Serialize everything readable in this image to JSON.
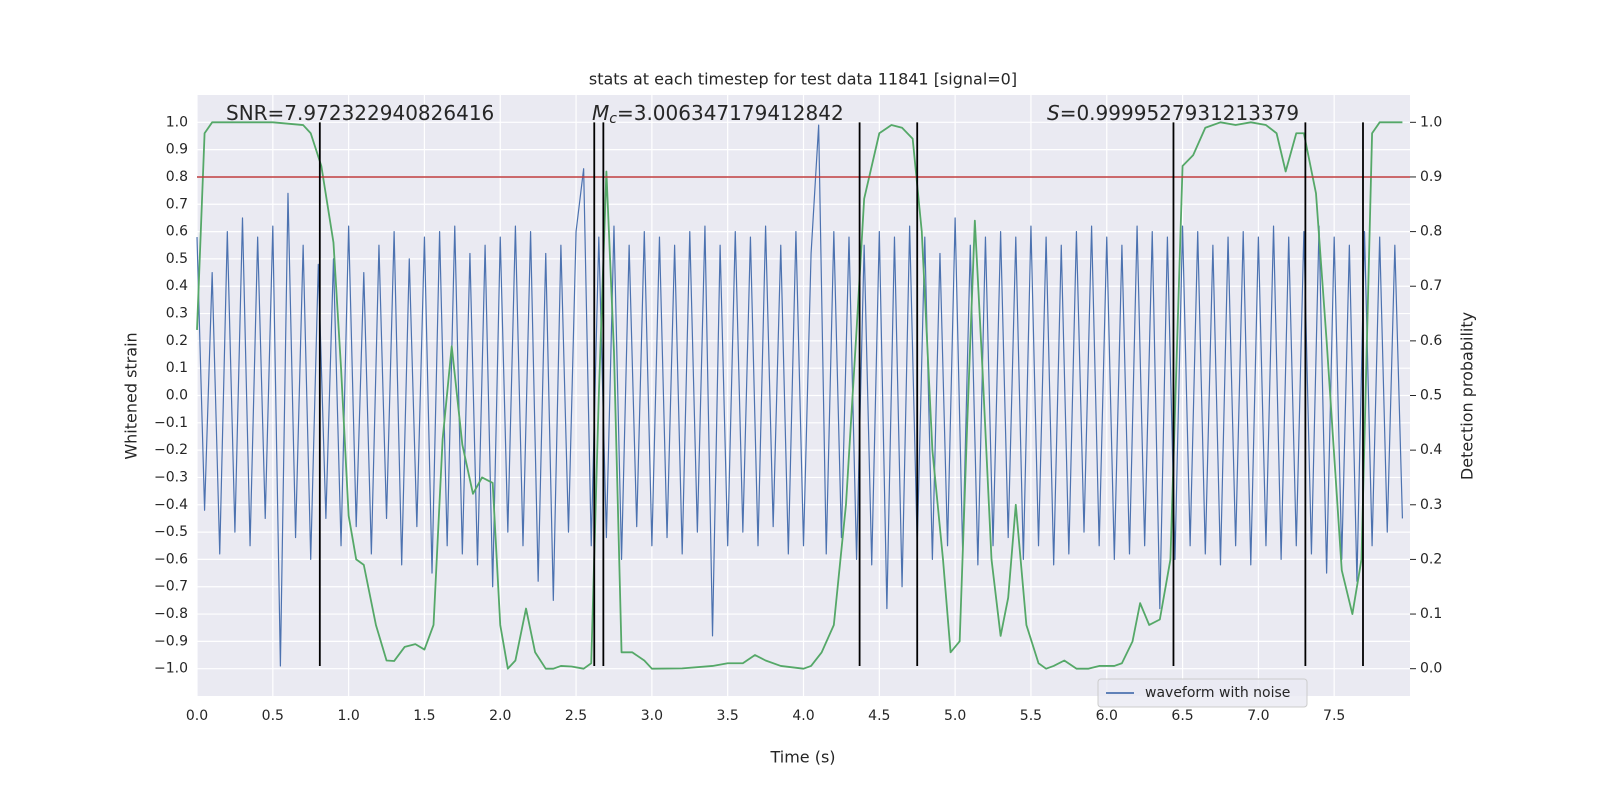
{
  "chart_data": {
    "type": "line",
    "title": "stats at each timestep for test data 11841 [signal=0]",
    "xlabel": "Time (s)",
    "ylabel": "Whitened strain",
    "y2label": "Detection probability",
    "xlim": [
      0,
      8
    ],
    "ylim": [
      -1.1,
      1.1
    ],
    "y2lim": [
      -0.05,
      1.05
    ],
    "grid": true,
    "legend": "lower right",
    "xticks": [
      {
        "value": 0,
        "label": "0.0"
      },
      0.5,
      {
        "value": 1,
        "label": "1.0"
      },
      1.5,
      {
        "value": 2,
        "label": "2.0"
      },
      2.5,
      {
        "value": 3,
        "label": "3.0"
      },
      3.5,
      {
        "value": 4,
        "label": "4.0"
      },
      4.5,
      {
        "value": 5,
        "label": "5.0"
      },
      5.5,
      {
        "value": 6,
        "label": "6.0"
      },
      6.5,
      {
        "value": 7,
        "label": "7.0"
      },
      7.5
    ],
    "yticks": [
      {
        "value": -1,
        "label": "−1.0"
      },
      {
        "value": -0.9,
        "label": "−0.9"
      },
      {
        "value": -0.8,
        "label": "−0.8"
      },
      {
        "value": -0.7,
        "label": "−0.7"
      },
      {
        "value": -0.6,
        "label": "−0.6"
      },
      {
        "value": -0.5,
        "label": "−0.5"
      },
      {
        "value": -0.4,
        "label": "−0.4"
      },
      {
        "value": -0.3,
        "label": "−0.3"
      },
      {
        "value": -0.2,
        "label": "−0.2"
      },
      {
        "value": -0.1,
        "label": "−0.1"
      },
      {
        "value": 0,
        "label": "0.0"
      },
      0.1,
      0.2,
      0.3,
      0.4,
      0.5,
      0.6,
      0.7,
      0.8,
      0.9,
      {
        "value": 1,
        "label": "1.0"
      }
    ],
    "y2ticks": [
      {
        "value": 0,
        "label": "0.0"
      },
      0.1,
      0.2,
      0.3,
      0.4,
      0.5,
      0.6,
      0.7,
      0.8,
      0.9,
      {
        "value": 1,
        "label": "1.0"
      }
    ],
    "annotations": [
      {
        "text": "SNR=7.972322940826416"
      },
      {
        "symbol": "M",
        "subscript": "c",
        "text": "=3.006347179412842"
      },
      {
        "symbol": "S",
        "text": "=0.9999527931213379"
      }
    ],
    "threshold": {
      "value": 0.8,
      "color": "#c03d3e"
    },
    "vlines": {
      "x": [
        0.81,
        2.62,
        2.68,
        4.37,
        4.75,
        6.44,
        7.31,
        7.69
      ],
      "ymin": -0.99,
      "ymax": 1.0,
      "color": "#000000"
    },
    "series": [
      {
        "name": "waveform with noise",
        "color": "#4c72b0",
        "x": [
          0,
          0.05,
          0.1,
          0.15,
          0.2,
          0.25,
          0.3,
          0.35,
          0.4,
          0.45,
          0.5,
          0.55,
          0.6,
          0.65,
          0.7,
          0.75,
          0.8,
          0.85,
          0.9,
          0.95,
          1,
          1.05,
          1.1,
          1.15,
          1.2,
          1.25,
          1.3,
          1.35,
          1.4,
          1.45,
          1.5,
          1.55,
          1.6,
          1.65,
          1.7,
          1.75,
          1.8,
          1.85,
          1.9,
          1.95,
          2,
          2.05,
          2.1,
          2.15,
          2.2,
          2.25,
          2.3,
          2.35,
          2.4,
          2.45,
          2.5,
          2.55,
          2.6,
          2.65,
          2.7,
          2.75,
          2.8,
          2.85,
          2.9,
          2.95,
          3,
          3.05,
          3.1,
          3.15,
          3.2,
          3.25,
          3.3,
          3.35,
          3.4,
          3.45,
          3.5,
          3.55,
          3.6,
          3.65,
          3.7,
          3.75,
          3.8,
          3.85,
          3.9,
          3.95,
          4,
          4.05,
          4.1,
          4.15,
          4.2,
          4.25,
          4.3,
          4.35,
          4.4,
          4.45,
          4.5,
          4.55,
          4.6,
          4.65,
          4.7,
          4.75,
          4.8,
          4.85,
          4.9,
          4.95,
          5,
          5.05,
          5.1,
          5.15,
          5.2,
          5.25,
          5.3,
          5.35,
          5.4,
          5.45,
          5.5,
          5.55,
          5.6,
          5.65,
          5.7,
          5.75,
          5.8,
          5.85,
          5.9,
          5.95,
          6,
          6.05,
          6.1,
          6.15,
          6.2,
          6.25,
          6.3,
          6.35,
          6.4,
          6.45,
          6.5,
          6.55,
          6.6,
          6.65,
          6.7,
          6.75,
          6.8,
          6.85,
          6.9,
          6.95,
          7,
          7.05,
          7.1,
          7.15,
          7.2,
          7.25,
          7.3,
          7.35,
          7.4,
          7.45,
          7.5,
          7.55,
          7.6,
          7.65,
          7.7,
          7.75,
          7.8,
          7.85,
          7.9,
          7.95
        ],
        "values": [
          0.58,
          -0.42,
          0.45,
          -0.58,
          0.6,
          -0.5,
          0.65,
          -0.55,
          0.58,
          -0.45,
          0.62,
          -0.99,
          0.74,
          -0.52,
          0.55,
          -0.6,
          0.48,
          -0.45,
          0.5,
          -0.55,
          0.62,
          -0.48,
          0.45,
          -0.58,
          0.55,
          -0.45,
          0.6,
          -0.62,
          0.5,
          -0.48,
          0.58,
          -0.65,
          0.6,
          -0.55,
          0.62,
          -0.58,
          0.52,
          -0.62,
          0.55,
          -0.7,
          0.58,
          -0.5,
          0.62,
          -0.55,
          0.6,
          -0.68,
          0.52,
          -0.75,
          0.55,
          -0.5,
          0.6,
          0.83,
          -0.55,
          0.58,
          -0.52,
          0.62,
          -0.6,
          0.55,
          -0.48,
          0.6,
          -0.55,
          0.58,
          -0.52,
          0.55,
          -0.58,
          0.6,
          -0.5,
          0.62,
          -0.88,
          0.55,
          -0.55,
          0.6,
          -0.5,
          0.58,
          -0.55,
          0.62,
          -0.48,
          0.55,
          -0.58,
          0.6,
          -0.55,
          0.52,
          0.99,
          -0.58,
          0.6,
          -0.52,
          0.58,
          -0.6,
          0.55,
          -0.62,
          0.6,
          -0.78,
          0.58,
          -0.7,
          0.62,
          -0.55,
          0.58,
          -0.6,
          0.52,
          -0.55,
          0.65,
          -0.58,
          0.55,
          -0.62,
          0.58,
          -0.55,
          0.6,
          -0.52,
          0.58,
          -0.6,
          0.62,
          -0.55,
          0.58,
          -0.62,
          0.55,
          -0.58,
          0.6,
          -0.5,
          0.62,
          -0.55,
          0.58,
          -0.6,
          0.55,
          -0.58,
          0.62,
          -0.55,
          0.6,
          -0.78,
          0.58,
          -0.6,
          0.62,
          -0.55,
          0.6,
          -0.58,
          0.55,
          -0.62,
          0.58,
          -0.55,
          0.6,
          -0.62,
          0.58,
          -0.55,
          0.62,
          -0.6,
          0.58,
          -0.55,
          0.6,
          -0.58,
          0.62,
          -0.65,
          0.58,
          -0.6,
          0.55,
          -0.68,
          0.6,
          -0.55,
          0.58,
          -0.5,
          0.55,
          -0.45
        ]
      },
      {
        "color": "#55a868",
        "axis": "y2",
        "x": [
          0,
          0.05,
          0.1,
          0.3,
          0.5,
          0.7,
          0.75,
          0.82,
          0.9,
          0.95,
          1,
          1.05,
          1.1,
          1.18,
          1.25,
          1.3,
          1.37,
          1.44,
          1.5,
          1.56,
          1.62,
          1.68,
          1.75,
          1.82,
          1.88,
          1.95,
          2,
          2.05,
          2.1,
          2.17,
          2.23,
          2.3,
          2.35,
          2.4,
          2.47,
          2.55,
          2.6,
          2.65,
          2.7,
          2.75,
          2.8,
          2.87,
          2.95,
          3,
          3.2,
          3.4,
          3.5,
          3.6,
          3.68,
          3.75,
          3.85,
          4,
          4.05,
          4.12,
          4.2,
          4.28,
          4.35,
          4.4,
          4.5,
          4.58,
          4.65,
          4.72,
          4.78,
          4.85,
          4.92,
          4.97,
          5.03,
          5.08,
          5.13,
          5.18,
          5.24,
          5.3,
          5.35,
          5.4,
          5.47,
          5.55,
          5.6,
          5.65,
          5.72,
          5.8,
          5.88,
          5.95,
          6.05,
          6.1,
          6.17,
          6.22,
          6.28,
          6.35,
          6.42,
          6.5,
          6.57,
          6.65,
          6.75,
          6.85,
          6.95,
          7.05,
          7.12,
          7.18,
          7.25,
          7.3,
          7.38,
          7.45,
          7.55,
          7.62,
          7.68,
          7.75,
          7.8,
          7.95
        ],
        "values": [
          0.62,
          0.98,
          1,
          1,
          1,
          0.995,
          0.98,
          0.92,
          0.78,
          0.55,
          0.28,
          0.2,
          0.19,
          0.08,
          0.015,
          0.014,
          0.04,
          0.045,
          0.035,
          0.08,
          0.42,
          0.59,
          0.41,
          0.32,
          0.35,
          0.34,
          0.08,
          0,
          0.015,
          0.11,
          0.03,
          0,
          0,
          0.005,
          0.004,
          0,
          0.01,
          0.5,
          0.91,
          0.58,
          0.03,
          0.03,
          0.015,
          0,
          0.0005,
          0.005,
          0.01,
          0.01,
          0.025,
          0.015,
          0.005,
          0,
          0.005,
          0.03,
          0.08,
          0.3,
          0.62,
          0.86,
          0.98,
          0.995,
          0.99,
          0.97,
          0.8,
          0.4,
          0.2,
          0.03,
          0.05,
          0.45,
          0.82,
          0.55,
          0.2,
          0.06,
          0.13,
          0.3,
          0.08,
          0.01,
          0,
          0.005,
          0.015,
          0,
          0,
          0.005,
          0.005,
          0.01,
          0.05,
          0.12,
          0.08,
          0.09,
          0.2,
          0.92,
          0.94,
          0.99,
          1,
          0.995,
          1,
          0.995,
          0.98,
          0.91,
          0.98,
          0.98,
          0.87,
          0.6,
          0.18,
          0.1,
          0.2,
          0.98,
          1,
          1
        ]
      }
    ]
  }
}
